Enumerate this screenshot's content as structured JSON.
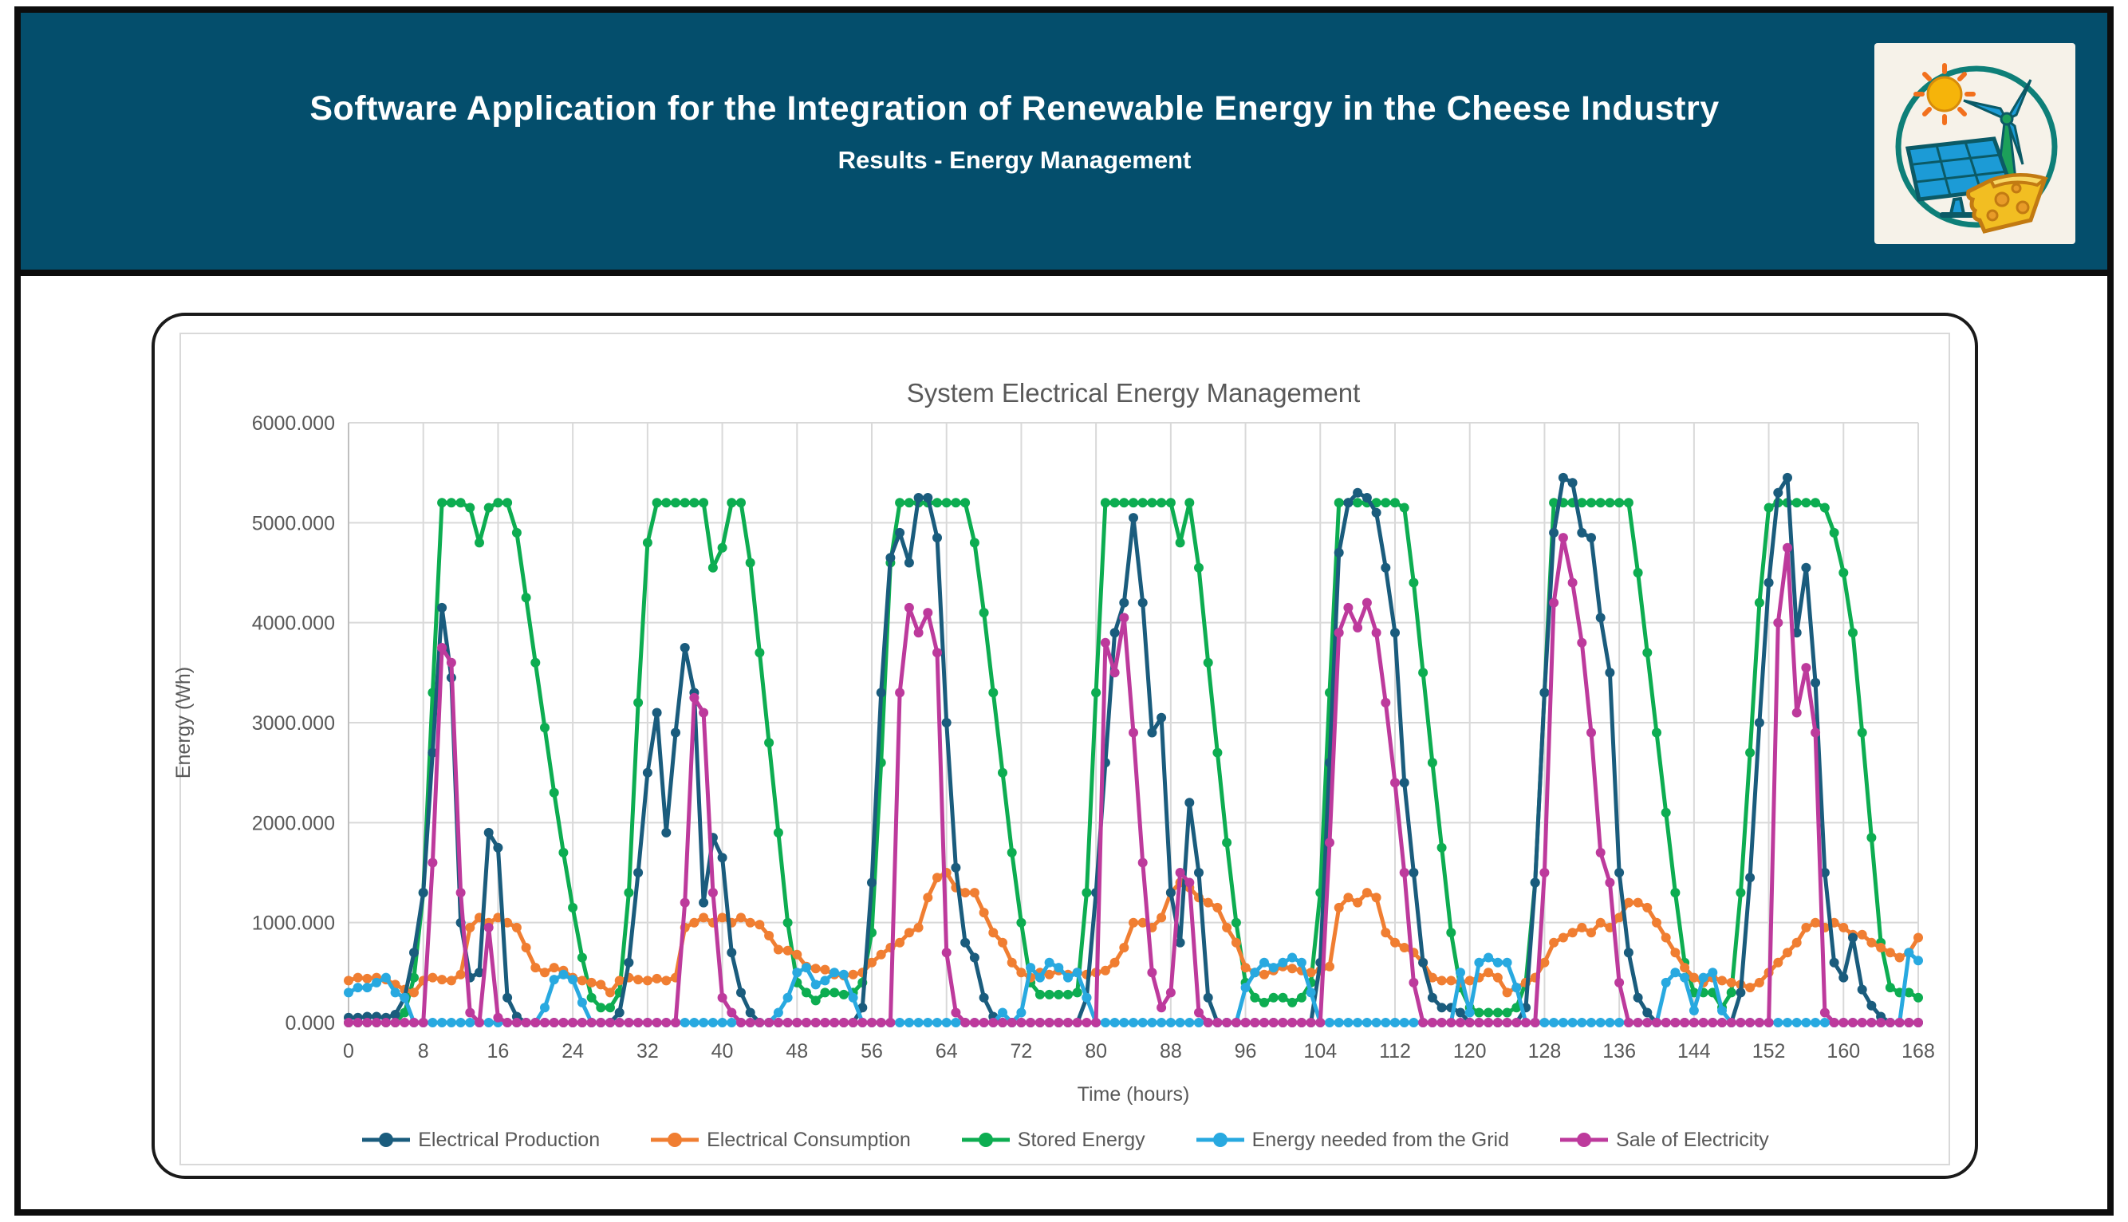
{
  "header": {
    "title": "Software Application for the Integration of Renewable Energy in the Cheese Industry",
    "subtitle": "Results - Energy Management"
  },
  "logo": {
    "icon": "renewable-energy-cheese-logo",
    "elements": [
      "sun",
      "wind-turbine",
      "solar-panel",
      "cheese-wedge"
    ],
    "colors": {
      "circle": "#0e7f78",
      "sun": "#f6b40a",
      "rays": "#f2701d",
      "panel": "#1c9bd6",
      "tower": "#1ca05a",
      "cheese": "#f2be22"
    }
  },
  "colors": {
    "header_bg": "#044e6c",
    "frame_border": "#0d0d0d",
    "chart_text": "#595959",
    "grid_line": "#d9d9d9",
    "axis_line": "#bfbfbf"
  },
  "chart_data": {
    "type": "line",
    "title": "System Electrical Energy Management",
    "xlabel": "Time (hours)",
    "ylabel": "Energy (Wh)",
    "xlim": [
      0,
      168
    ],
    "ylim": [
      0,
      6000
    ],
    "x_tick_step": 8,
    "x_tick_labels": [
      "0",
      "8",
      "16",
      "24",
      "32",
      "40",
      "48",
      "56",
      "64",
      "72",
      "80",
      "88",
      "96",
      "104",
      "112",
      "120",
      "128",
      "136",
      "144",
      "152",
      "160",
      "168"
    ],
    "y_tick_labels": [
      "0.000",
      "1000.000",
      "2000.000",
      "3000.000",
      "4000.000",
      "5000.000",
      "6000.000"
    ],
    "grid": true,
    "legend_position": "bottom",
    "marker": "circle",
    "x": [
      0,
      1,
      2,
      3,
      4,
      5,
      6,
      7,
      8,
      9,
      10,
      11,
      12,
      13,
      14,
      15,
      16,
      17,
      18,
      19,
      20,
      21,
      22,
      23,
      24,
      25,
      26,
      27,
      28,
      29,
      30,
      31,
      32,
      33,
      34,
      35,
      36,
      37,
      38,
      39,
      40,
      41,
      42,
      43,
      44,
      45,
      46,
      47,
      48,
      49,
      50,
      51,
      52,
      53,
      54,
      55,
      56,
      57,
      58,
      59,
      60,
      61,
      62,
      63,
      64,
      65,
      66,
      67,
      68,
      69,
      70,
      71,
      72,
      73,
      74,
      75,
      76,
      77,
      78,
      79,
      80,
      81,
      82,
      83,
      84,
      85,
      86,
      87,
      88,
      89,
      90,
      91,
      92,
      93,
      94,
      95,
      96,
      97,
      98,
      99,
      100,
      101,
      102,
      103,
      104,
      105,
      106,
      107,
      108,
      109,
      110,
      111,
      112,
      113,
      114,
      115,
      116,
      117,
      118,
      119,
      120,
      121,
      122,
      123,
      124,
      125,
      126,
      127,
      128,
      129,
      130,
      131,
      132,
      133,
      134,
      135,
      136,
      137,
      138,
      139,
      140,
      141,
      142,
      143,
      144,
      145,
      146,
      147,
      148,
      149,
      150,
      151,
      152,
      153,
      154,
      155,
      156,
      157,
      158,
      159,
      160,
      161,
      162,
      163,
      164,
      165,
      166,
      167,
      168
    ],
    "series": [
      {
        "name": "Electrical Production",
        "color": "#1a5c7d",
        "values": [
          50,
          50,
          60,
          60,
          50,
          80,
          250,
          700,
          1300,
          2700,
          4150,
          3450,
          1000,
          450,
          500,
          1900,
          1750,
          250,
          60,
          0,
          0,
          0,
          0,
          0,
          0,
          0,
          0,
          0,
          0,
          100,
          600,
          1500,
          2500,
          3100,
          1900,
          2900,
          3750,
          3300,
          1200,
          1850,
          1650,
          700,
          300,
          100,
          0,
          0,
          0,
          0,
          0,
          0,
          0,
          0,
          0,
          0,
          0,
          150,
          1400,
          3300,
          4650,
          4900,
          4600,
          5250,
          5250,
          4850,
          3000,
          1550,
          800,
          650,
          250,
          60,
          0,
          0,
          0,
          0,
          0,
          0,
          0,
          0,
          0,
          250,
          1300,
          2600,
          3900,
          4200,
          5050,
          4200,
          2900,
          3050,
          1300,
          800,
          2200,
          1500,
          250,
          0,
          0,
          0,
          0,
          0,
          0,
          0,
          0,
          0,
          0,
          0,
          600,
          2600,
          4700,
          5200,
          5300,
          5250,
          5100,
          4550,
          3900,
          2400,
          1500,
          600,
          250,
          150,
          150,
          100,
          0,
          0,
          0,
          0,
          0,
          0,
          150,
          1400,
          3300,
          4900,
          5450,
          5400,
          4900,
          4850,
          4050,
          3500,
          1500,
          700,
          250,
          100,
          0,
          0,
          0,
          0,
          0,
          0,
          0,
          0,
          0,
          300,
          1450,
          3000,
          4400,
          5300,
          5450,
          3900,
          4550,
          3400,
          1500,
          600,
          450,
          850,
          330,
          170,
          60,
          0,
          0,
          0,
          0
        ]
      },
      {
        "name": "Electrical Consumption",
        "color": "#f07e32",
        "values": [
          420,
          450,
          440,
          450,
          430,
          380,
          330,
          300,
          420,
          450,
          430,
          420,
          480,
          950,
          1050,
          1000,
          1050,
          1000,
          950,
          750,
          550,
          500,
          550,
          520,
          450,
          420,
          400,
          380,
          300,
          420,
          450,
          430,
          420,
          440,
          420,
          450,
          950,
          1000,
          1050,
          1000,
          1050,
          1000,
          1050,
          1000,
          980,
          870,
          730,
          720,
          680,
          560,
          540,
          530,
          480,
          470,
          480,
          500,
          600,
          680,
          750,
          800,
          900,
          950,
          1250,
          1450,
          1500,
          1350,
          1300,
          1300,
          1100,
          900,
          800,
          600,
          500,
          450,
          500,
          480,
          520,
          480,
          500,
          480,
          500,
          520,
          600,
          750,
          1000,
          1000,
          950,
          1050,
          1300,
          1400,
          1350,
          1250,
          1200,
          1150,
          950,
          800,
          550,
          500,
          480,
          520,
          560,
          540,
          520,
          500,
          520,
          560,
          1150,
          1250,
          1200,
          1300,
          1250,
          900,
          800,
          750,
          700,
          600,
          450,
          420,
          420,
          400,
          420,
          450,
          500,
          450,
          300,
          350,
          400,
          450,
          600,
          800,
          850,
          900,
          950,
          900,
          1000,
          950,
          1050,
          1200,
          1200,
          1150,
          1000,
          850,
          700,
          550,
          450,
          400,
          450,
          420,
          400,
          380,
          350,
          400,
          500,
          600,
          700,
          800,
          950,
          1000,
          950,
          1000,
          950,
          880,
          880,
          800,
          750,
          700,
          650,
          700,
          850
        ]
      },
      {
        "name": "Stored Energy",
        "color": "#0dad51",
        "values": [
          0,
          0,
          0,
          0,
          0,
          0,
          100,
          450,
          1300,
          3300,
          5200,
          5200,
          5200,
          5150,
          4800,
          5150,
          5200,
          5200,
          4900,
          4250,
          3600,
          2950,
          2300,
          1700,
          1150,
          650,
          250,
          150,
          150,
          300,
          1300,
          3200,
          4800,
          5200,
          5200,
          5200,
          5200,
          5200,
          5200,
          4550,
          4750,
          5200,
          5200,
          4600,
          3700,
          2800,
          1900,
          1000,
          400,
          300,
          220,
          300,
          300,
          280,
          300,
          400,
          900,
          2600,
          4600,
          5200,
          5200,
          5200,
          5200,
          5200,
          5200,
          5200,
          5200,
          4800,
          4100,
          3300,
          2500,
          1700,
          1000,
          400,
          280,
          280,
          280,
          280,
          300,
          1300,
          3300,
          5200,
          5200,
          5200,
          5200,
          5200,
          5200,
          5200,
          5200,
          4800,
          5200,
          4550,
          3600,
          2700,
          1800,
          1000,
          400,
          250,
          200,
          250,
          250,
          200,
          250,
          400,
          1300,
          3300,
          5200,
          5200,
          5200,
          5200,
          5200,
          5200,
          5200,
          5150,
          4400,
          3500,
          2600,
          1750,
          900,
          350,
          150,
          100,
          100,
          100,
          100,
          150,
          400,
          1400,
          3300,
          5200,
          5200,
          5200,
          5200,
          5200,
          5200,
          5200,
          5200,
          5200,
          4500,
          3700,
          2900,
          2100,
          1300,
          600,
          300,
          300,
          300,
          150,
          300,
          1300,
          2700,
          4200,
          5150,
          5200,
          5200,
          5200,
          5200,
          5200,
          5150,
          4900,
          4500,
          3900,
          2900,
          1850,
          800,
          350,
          300,
          300,
          250
        ]
      },
      {
        "name": "Energy needed from the Grid",
        "color": "#28a9e0",
        "values": [
          300,
          350,
          350,
          400,
          450,
          300,
          250,
          0,
          0,
          0,
          0,
          0,
          0,
          0,
          0,
          0,
          0,
          0,
          0,
          0,
          0,
          150,
          430,
          480,
          430,
          200,
          0,
          0,
          0,
          0,
          0,
          0,
          0,
          0,
          0,
          0,
          0,
          0,
          0,
          0,
          0,
          0,
          0,
          0,
          0,
          0,
          100,
          250,
          500,
          550,
          380,
          420,
          500,
          480,
          250,
          0,
          0,
          0,
          0,
          0,
          0,
          0,
          0,
          0,
          0,
          0,
          0,
          0,
          0,
          0,
          100,
          0,
          100,
          550,
          450,
          600,
          550,
          450,
          500,
          250,
          0,
          0,
          0,
          0,
          0,
          0,
          0,
          0,
          0,
          0,
          0,
          0,
          0,
          0,
          0,
          0,
          350,
          500,
          600,
          550,
          600,
          650,
          600,
          300,
          0,
          0,
          0,
          0,
          0,
          0,
          0,
          0,
          0,
          0,
          0,
          0,
          0,
          0,
          0,
          500,
          100,
          600,
          650,
          600,
          600,
          350,
          0,
          0,
          0,
          0,
          0,
          0,
          0,
          0,
          0,
          0,
          0,
          0,
          0,
          0,
          0,
          400,
          500,
          450,
          120,
          450,
          500,
          120,
          0,
          0,
          0,
          0,
          0,
          0,
          0,
          0,
          0,
          0,
          0,
          0,
          0,
          0,
          0,
          0,
          0,
          0,
          0,
          700,
          620
        ]
      },
      {
        "name": "Sale of Electricity",
        "color": "#bd3a9c",
        "values": [
          0,
          0,
          0,
          0,
          0,
          0,
          0,
          0,
          0,
          1600,
          3750,
          3600,
          1300,
          100,
          0,
          950,
          50,
          0,
          0,
          0,
          0,
          0,
          0,
          0,
          0,
          0,
          0,
          0,
          0,
          0,
          0,
          0,
          0,
          0,
          0,
          0,
          1200,
          3250,
          3100,
          1300,
          250,
          100,
          0,
          0,
          0,
          0,
          0,
          0,
          0,
          0,
          0,
          0,
          0,
          0,
          0,
          0,
          0,
          0,
          0,
          3300,
          4150,
          3900,
          4100,
          3700,
          700,
          100,
          0,
          0,
          0,
          0,
          0,
          0,
          0,
          0,
          0,
          0,
          0,
          0,
          0,
          0,
          0,
          3800,
          3500,
          4050,
          2900,
          1600,
          500,
          150,
          300,
          1500,
          1400,
          100,
          0,
          0,
          0,
          0,
          0,
          0,
          0,
          0,
          0,
          0,
          0,
          0,
          0,
          1800,
          3900,
          4150,
          3950,
          4200,
          3900,
          3200,
          2400,
          1500,
          400,
          0,
          0,
          0,
          0,
          0,
          0,
          0,
          0,
          0,
          0,
          0,
          0,
          0,
          1500,
          4200,
          4850,
          4400,
          3800,
          2900,
          1700,
          1400,
          400,
          0,
          0,
          0,
          0,
          0,
          0,
          0,
          0,
          0,
          0,
          0,
          0,
          0,
          0,
          0,
          0,
          4000,
          4750,
          3100,
          3550,
          2900,
          100,
          0,
          0,
          0,
          0,
          0,
          0,
          0,
          0,
          0,
          0
        ]
      }
    ]
  }
}
